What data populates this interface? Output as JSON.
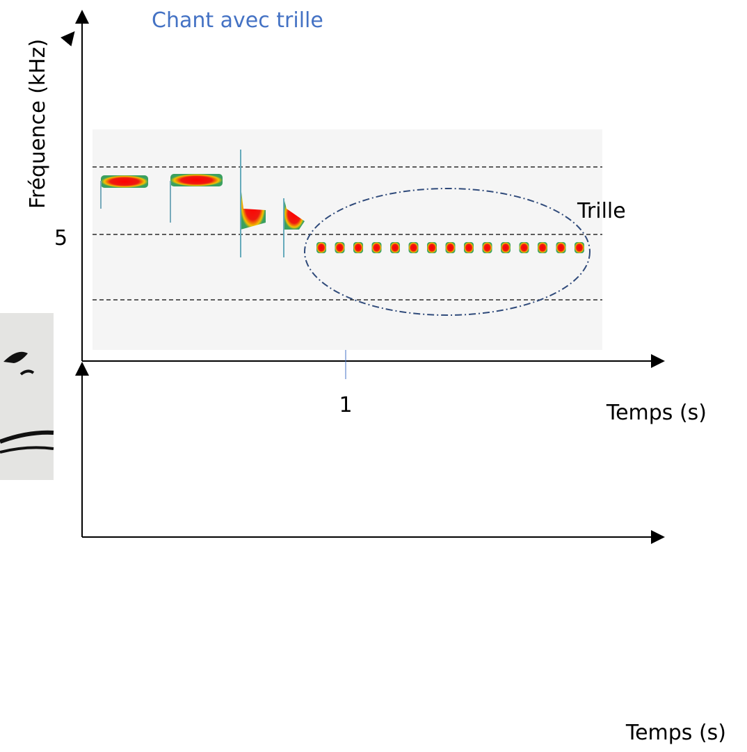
{
  "title": "Chant avec trille",
  "y_axis_label": "Fréquence (kHz)",
  "y_tick": "5",
  "x_tick": "1",
  "annotation": "Trille",
  "top_x_axis_label": "Temps (s)",
  "bottom_x_axis_label": "Temps (s)"
}
